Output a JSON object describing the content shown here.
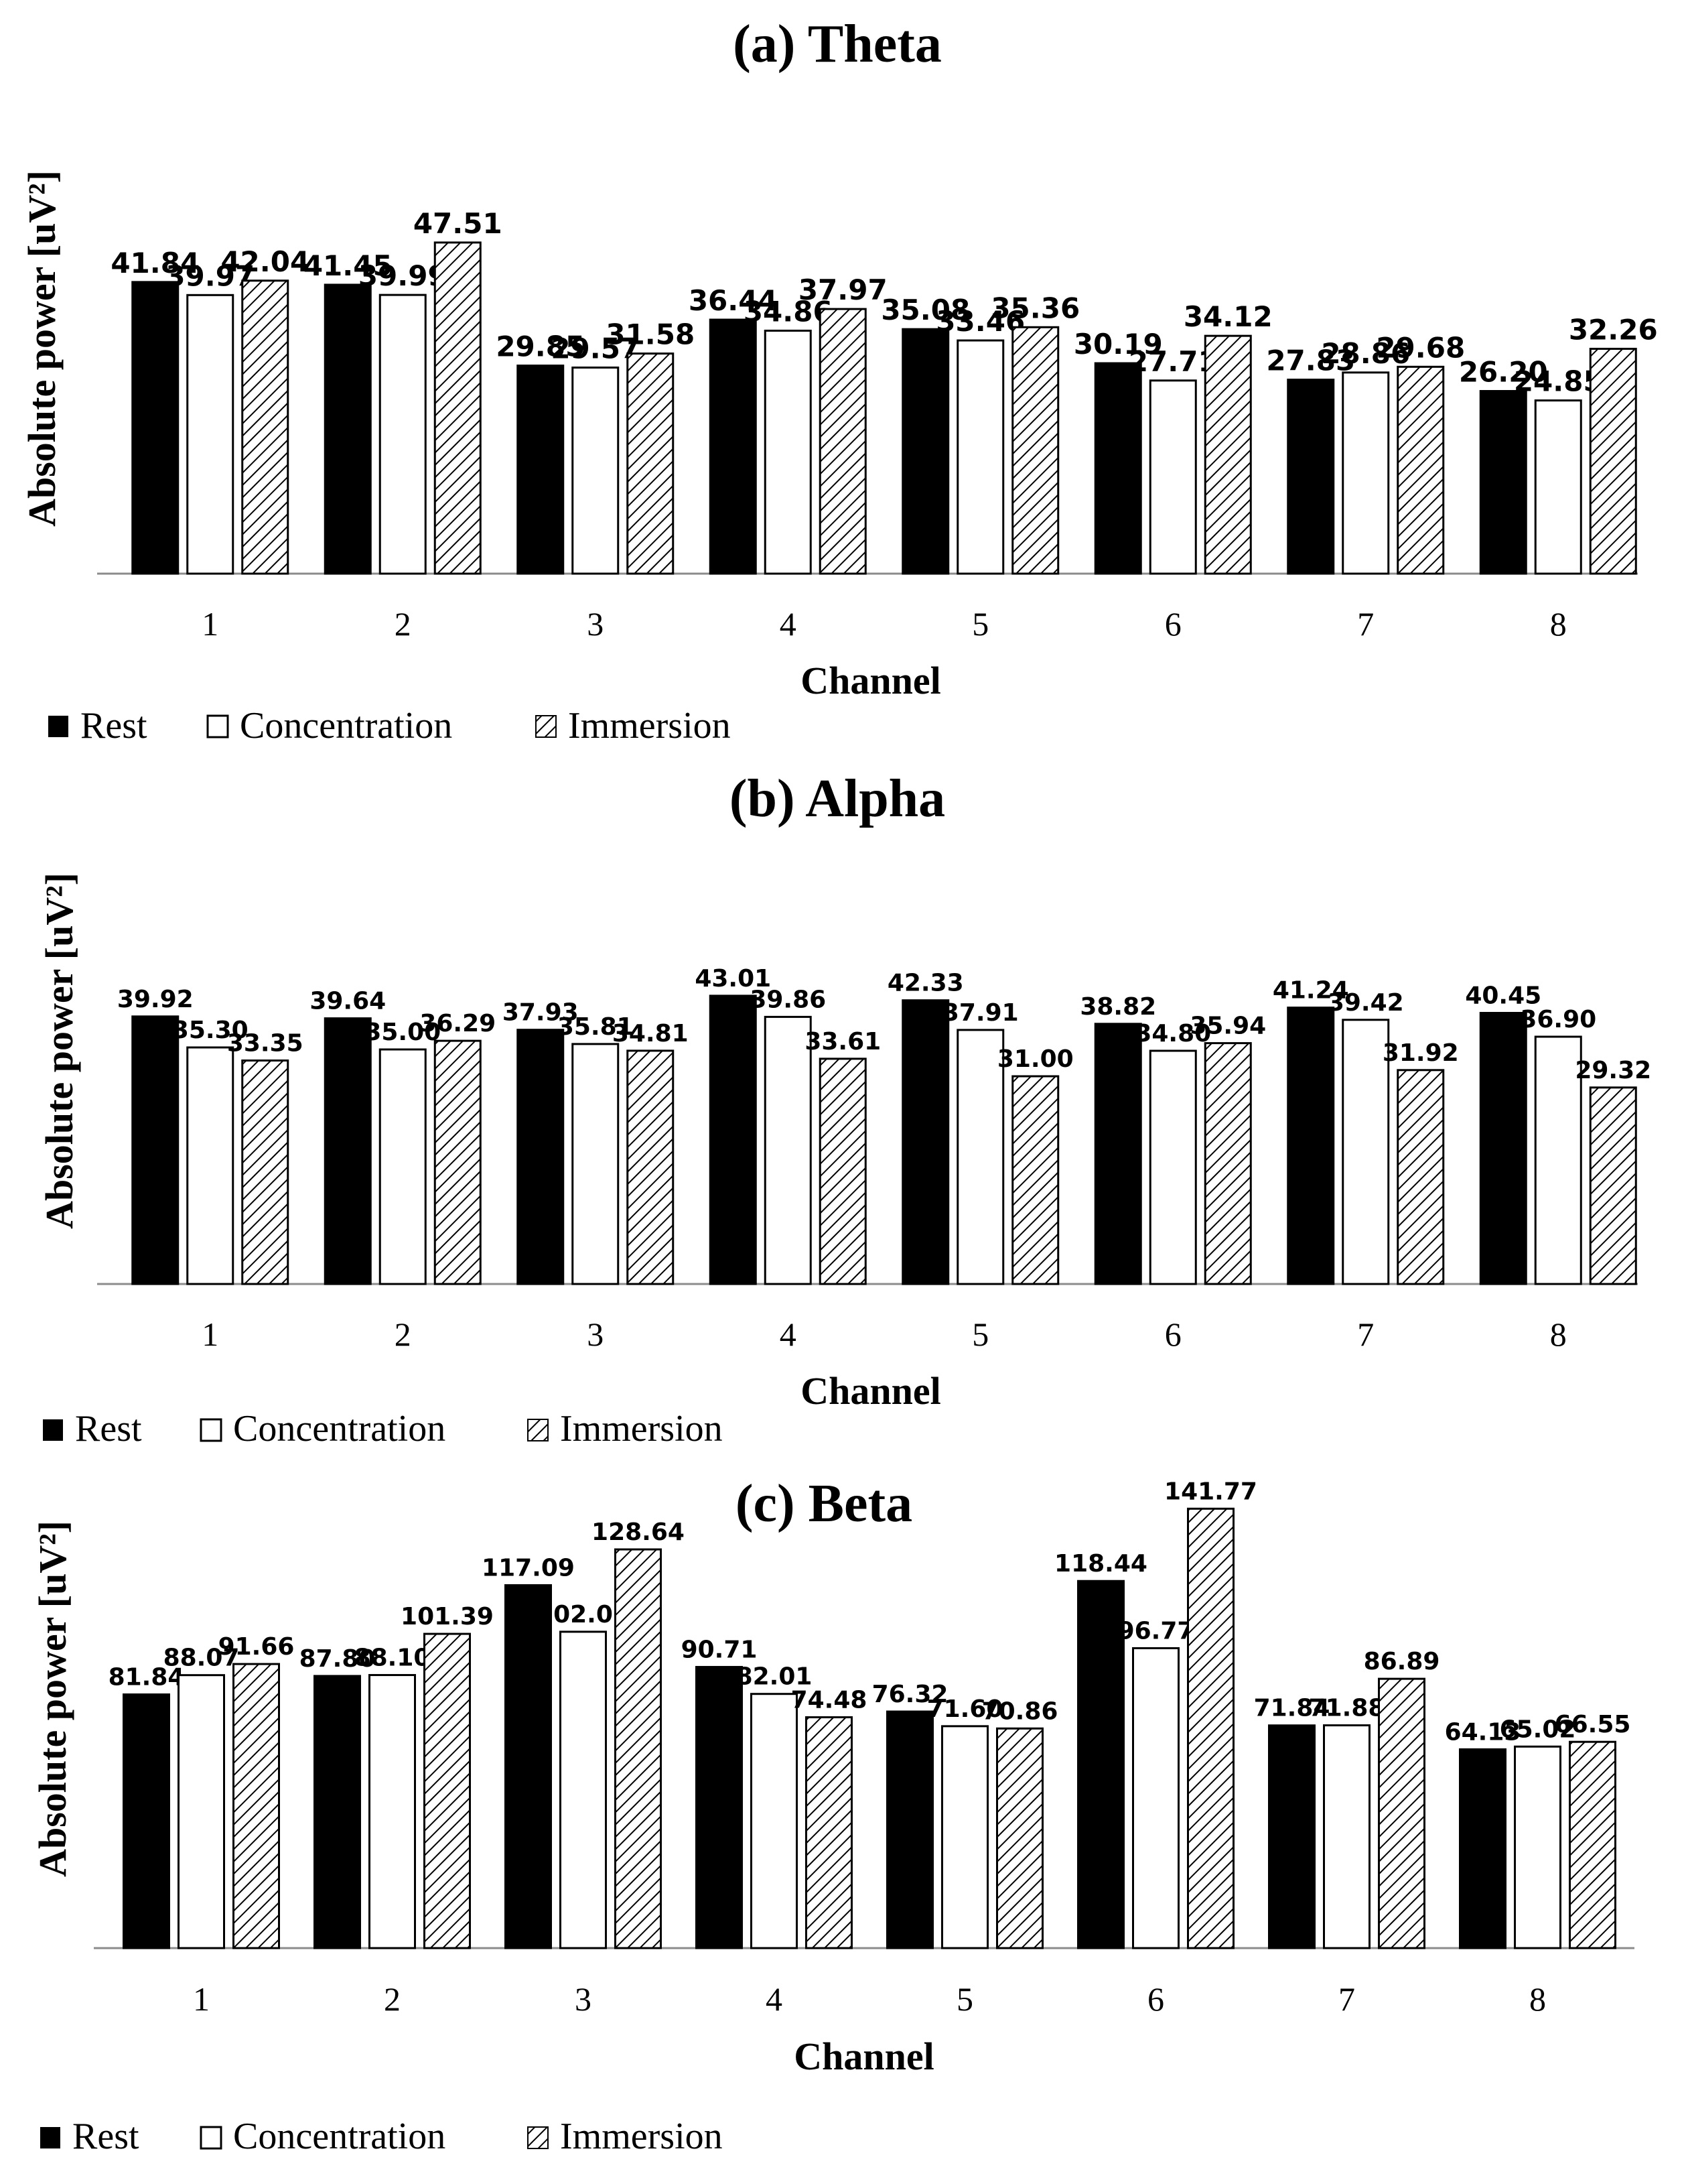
{
  "legend_items": {
    "rest": "Rest",
    "concentration": "Concentration",
    "immersion": "Immersion"
  },
  "colors": {
    "rest": "#000000",
    "concentration": "#ffffff",
    "immersion_hatch": "#000000",
    "axis": "#8c8c8c"
  },
  "chart_data": [
    {
      "type": "bar",
      "title": "(a)  Theta",
      "xlabel": "Channel",
      "ylabel": "Absolute power [uV²]",
      "categories": [
        "1",
        "2",
        "3",
        "4",
        "5",
        "6",
        "7",
        "8"
      ],
      "ylim": [
        0,
        50
      ],
      "series": [
        {
          "name": "Rest",
          "values": [
            41.84,
            41.45,
            29.85,
            36.44,
            35.08,
            30.19,
            27.83,
            26.2
          ]
        },
        {
          "name": "Concentration",
          "values": [
            39.97,
            39.99,
            29.57,
            34.86,
            33.46,
            27.71,
            28.86,
            24.85
          ]
        },
        {
          "name": "Immersion",
          "values": [
            42.04,
            47.51,
            31.58,
            37.97,
            35.36,
            34.12,
            29.68,
            32.26
          ]
        }
      ]
    },
    {
      "type": "bar",
      "title": "(b)  Alpha",
      "xlabel": "Channel",
      "ylabel": "Absolute power [uV²]",
      "categories": [
        "1",
        "2",
        "3",
        "4",
        "5",
        "6",
        "7",
        "8"
      ],
      "ylim": [
        0,
        50
      ],
      "series": [
        {
          "name": "Rest",
          "values": [
            39.92,
            39.64,
            37.93,
            43.01,
            42.33,
            38.82,
            41.24,
            40.45
          ]
        },
        {
          "name": "Concentration",
          "values": [
            35.3,
            35.0,
            35.81,
            39.86,
            37.91,
            34.8,
            39.42,
            36.9
          ]
        },
        {
          "name": "Immersion",
          "values": [
            33.35,
            36.29,
            34.81,
            33.61,
            31.0,
            35.94,
            31.92,
            29.32
          ]
        }
      ]
    },
    {
      "type": "bar",
      "title": "(c)  Beta",
      "xlabel": "Channel",
      "ylabel": "Absolute power [uV²]",
      "categories": [
        "1",
        "2",
        "3",
        "4",
        "5",
        "6",
        "7",
        "8"
      ],
      "ylim": [
        0,
        160
      ],
      "series": [
        {
          "name": "Rest",
          "values": [
            81.84,
            87.8,
            117.09,
            90.71,
            76.32,
            118.44,
            71.84,
            64.13
          ]
        },
        {
          "name": "Concentration",
          "values": [
            88.07,
            88.1,
            102.07,
            82.01,
            71.6,
            96.77,
            71.88,
            65.02
          ]
        },
        {
          "name": "Immersion",
          "values": [
            91.66,
            101.39,
            128.64,
            74.48,
            70.86,
            141.77,
            86.89,
            66.55
          ]
        }
      ]
    }
  ]
}
